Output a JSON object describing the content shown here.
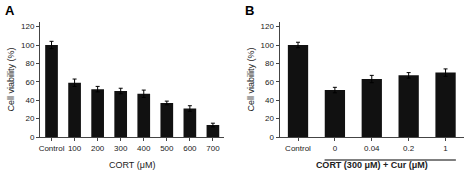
{
  "chart_data": [
    {
      "type": "bar",
      "title": "A",
      "categories": [
        "Control",
        "100",
        "200",
        "300",
        "400",
        "500",
        "600",
        "700"
      ],
      "values": [
        100,
        59,
        52,
        50,
        47,
        37,
        31,
        13
      ],
      "errors": [
        4,
        4,
        3,
        3,
        4,
        2,
        3,
        2
      ],
      "xlabel": "CORT (μM)",
      "ylabel": "Cell viability (%)",
      "ylim": [
        0,
        125
      ],
      "yticks": [
        0,
        20,
        40,
        60,
        80,
        100,
        120
      ],
      "color": "#111111",
      "grid": false
    },
    {
      "type": "bar",
      "title": "B",
      "categories": [
        "Control",
        "0",
        "0.04",
        "0.2",
        "1"
      ],
      "values": [
        100,
        51,
        63,
        67,
        70
      ],
      "errors": [
        3,
        3,
        4,
        3,
        4
      ],
      "xlabel": "CORT (300 μM) + Cur (μM)",
      "ylabel": "Cell viability (%)",
      "ylim": [
        0,
        125
      ],
      "yticks": [
        0,
        20,
        40,
        60,
        80,
        100,
        120
      ],
      "color": "#111111",
      "grid": false
    }
  ]
}
